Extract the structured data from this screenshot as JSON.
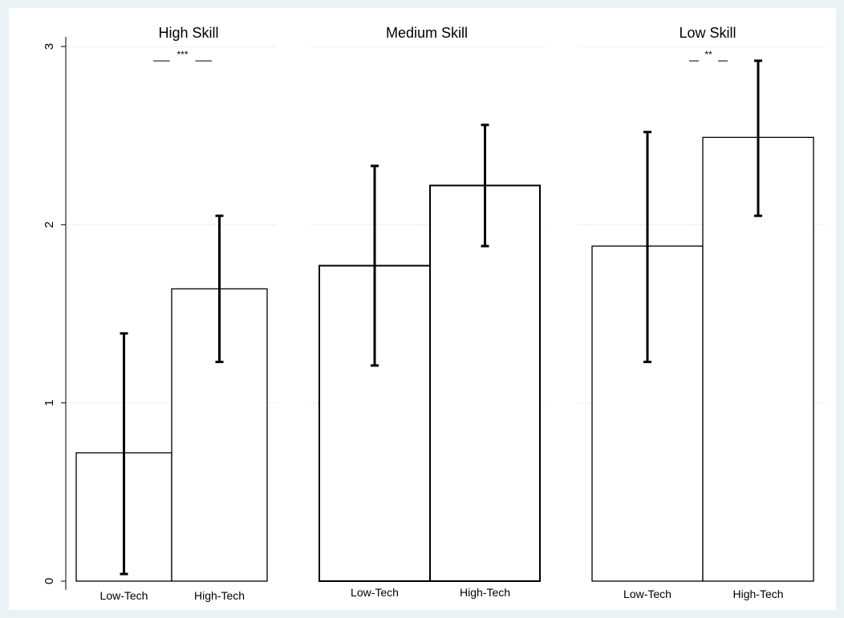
{
  "chart_data": {
    "type": "bar",
    "ylim": [
      0,
      3
    ],
    "yticks": [
      "0",
      "1",
      "2",
      "3"
    ],
    "grid": true,
    "categories": [
      "Low-Tech",
      "High-Tech"
    ],
    "panels": [
      {
        "title": "High Skill",
        "significance": "***",
        "bars": [
          {
            "category": "Low-Tech",
            "value": 0.72,
            "ci": [
              0.04,
              1.39
            ]
          },
          {
            "category": "High-Tech",
            "value": 1.64,
            "ci": [
              1.23,
              2.05
            ]
          }
        ]
      },
      {
        "title": "Medium Skill",
        "significance": "",
        "bars": [
          {
            "category": "Low-Tech",
            "value": 1.77,
            "ci": [
              1.21,
              2.33
            ]
          },
          {
            "category": "High-Tech",
            "value": 2.22,
            "ci": [
              1.88,
              2.56
            ]
          }
        ]
      },
      {
        "title": "Low Skill",
        "significance": "**",
        "bars": [
          {
            "category": "Low-Tech",
            "value": 1.88,
            "ci": [
              1.23,
              2.52
            ]
          },
          {
            "category": "High-Tech",
            "value": 2.49,
            "ci": [
              2.05,
              2.92
            ]
          }
        ]
      }
    ]
  }
}
